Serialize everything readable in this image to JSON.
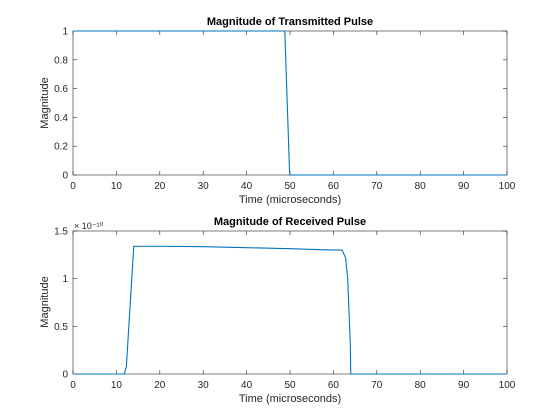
{
  "chart_data": [
    {
      "type": "line",
      "title": "Magnitude of Transmitted Pulse",
      "xlabel": "Time (microseconds)",
      "ylabel": "Magnitude",
      "xlim": [
        0,
        100
      ],
      "ylim": [
        0,
        1
      ],
      "x_ticks": [
        "0",
        "10",
        "20",
        "30",
        "40",
        "50",
        "60",
        "70",
        "80",
        "90",
        "100"
      ],
      "y_ticks": [
        "0",
        "0.2",
        "0.4",
        "0.6",
        "0.8",
        "1"
      ],
      "y_exponent": "",
      "series": [
        {
          "color": "#0072bd",
          "x": [
            0,
            48.8,
            49.9,
            50.0,
            100
          ],
          "y": [
            1,
            1,
            0.02,
            0,
            0
          ]
        }
      ]
    },
    {
      "type": "line",
      "title": "Magnitude of Received Pulse",
      "xlabel": "Time (microseconds)",
      "ylabel": "Magnitude",
      "xlim": [
        0,
        100
      ],
      "ylim": [
        0,
        1.5
      ],
      "x_ticks": [
        "0",
        "10",
        "20",
        "30",
        "40",
        "50",
        "60",
        "70",
        "80",
        "90",
        "100"
      ],
      "y_ticks": [
        "0",
        "0.5",
        "1",
        "1.5"
      ],
      "y_exponent": "× 10⁻¹⁰",
      "series": [
        {
          "color": "#0072bd",
          "x": [
            0,
            11.8,
            12.3,
            13.0,
            14.0,
            20,
            30,
            40,
            50,
            60,
            62.0,
            62.8,
            63.3,
            63.9,
            64.0,
            100
          ],
          "y": [
            0,
            0,
            0.08,
            0.6,
            1.34,
            1.34,
            1.335,
            1.325,
            1.315,
            1.3,
            1.3,
            1.22,
            1.0,
            0.3,
            0,
            0
          ]
        }
      ]
    }
  ]
}
